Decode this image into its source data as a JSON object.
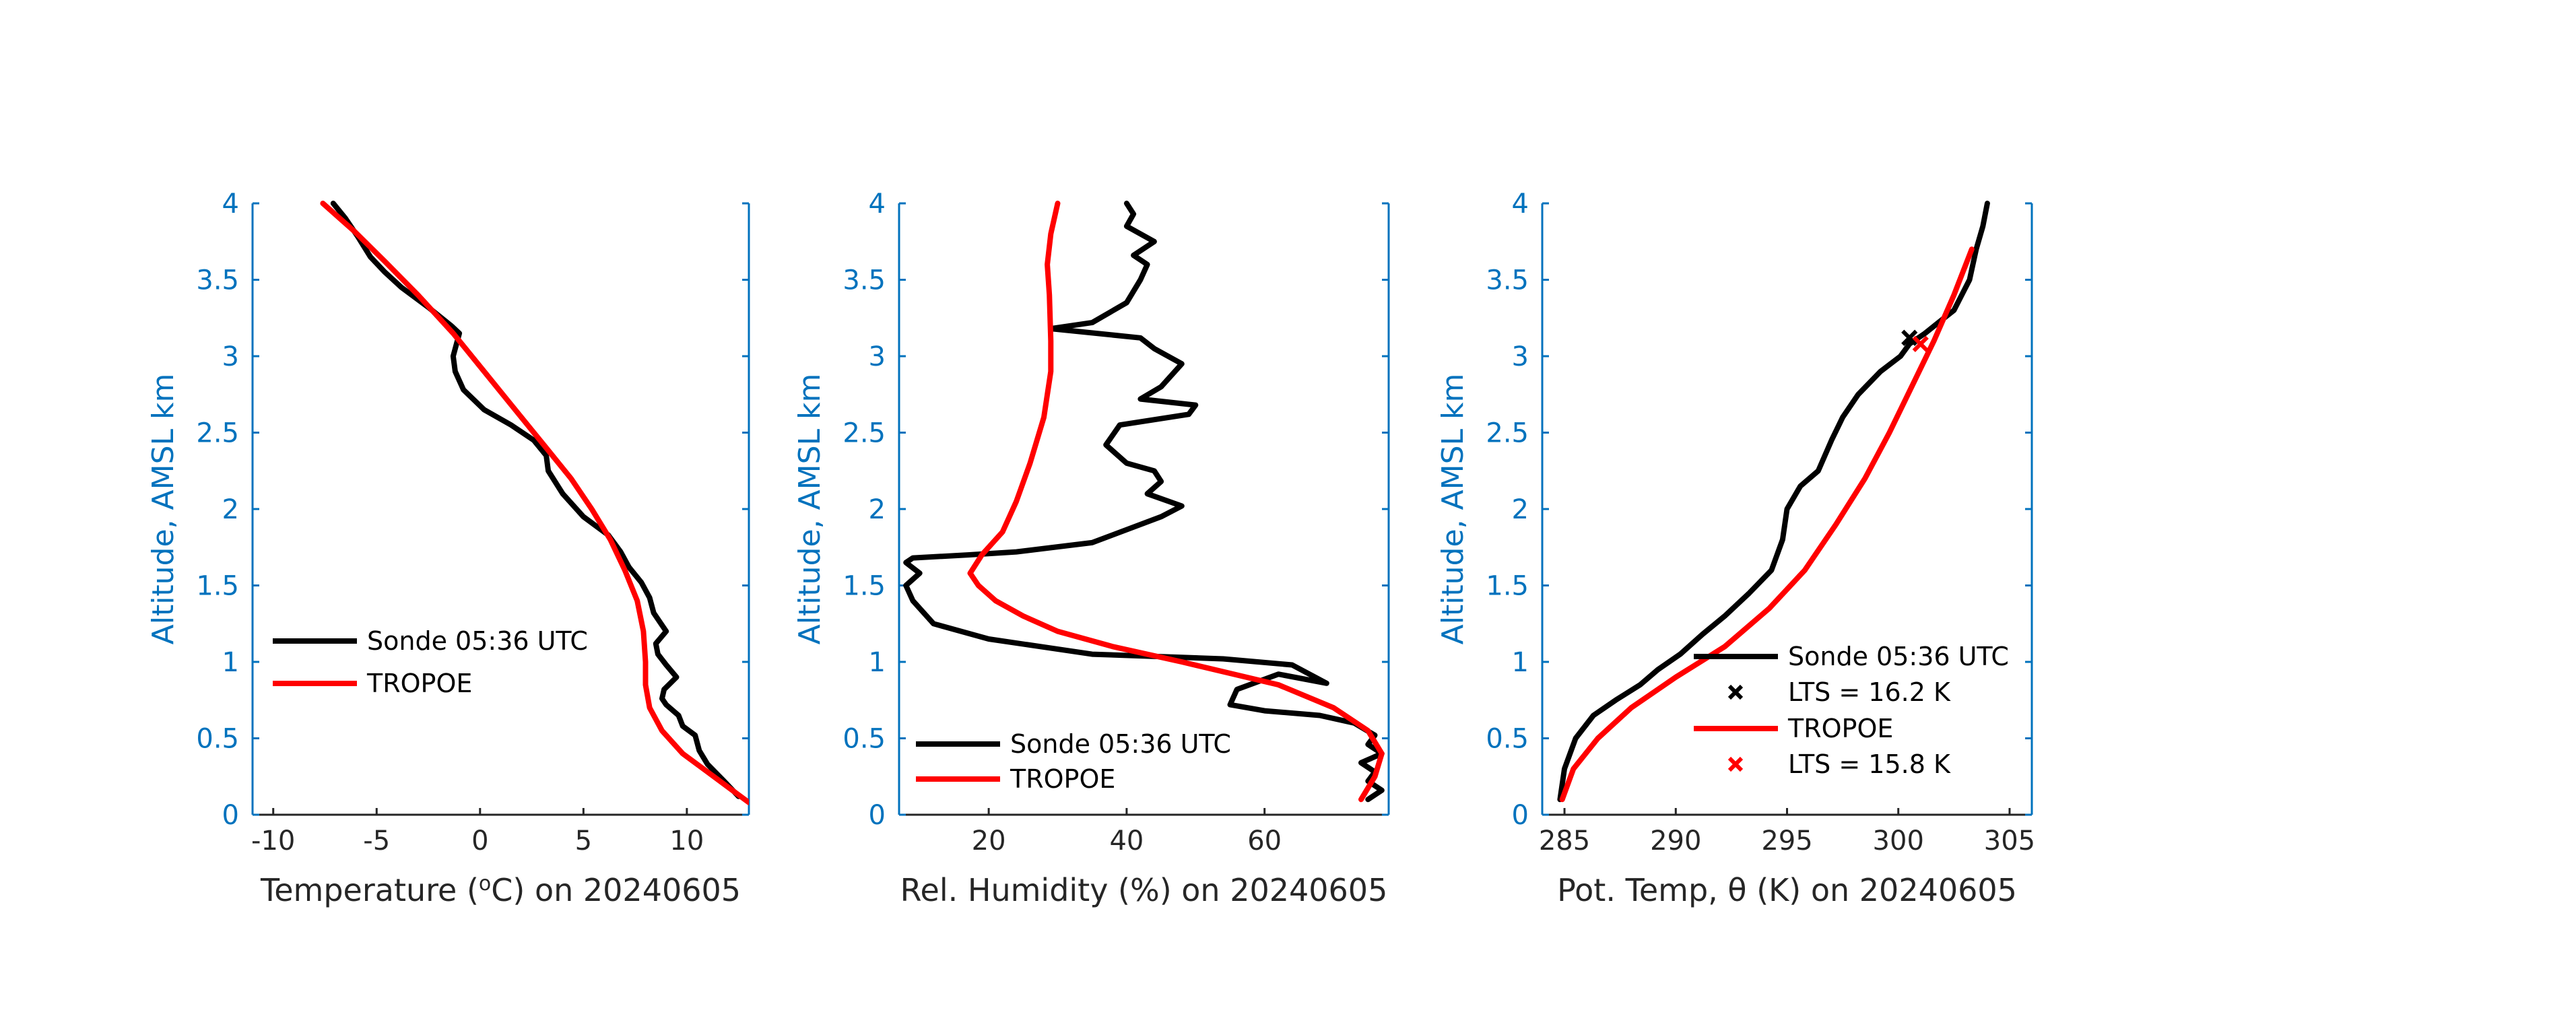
{
  "chart_data": [
    {
      "type": "line",
      "date": "20240605",
      "xlabel": "Temperature (",
      "xlabel_unit": "o",
      "xlabel_suffix": "C) on 20240605",
      "ylabel": "Altitude, AMSL km",
      "xlim": [
        -11,
        13
      ],
      "ylim": [
        0,
        4
      ],
      "xticks": [
        -10,
        -5,
        0,
        5,
        10
      ],
      "xtick_labels": [
        "-10",
        "-5",
        "0",
        "5",
        "10"
      ],
      "yticks": [
        0,
        0.5,
        1,
        1.5,
        2,
        2.5,
        3,
        3.5,
        4
      ],
      "ytick_labels": [
        "0",
        "0.5",
        "1",
        "1.5",
        "2",
        "2.5",
        "3",
        "3.5",
        "4"
      ],
      "legend_position": "lower-left",
      "series": [
        {
          "name": "Sonde 05:36 UTC",
          "color": "#000000",
          "x": [
            12.5,
            11.8,
            11.0,
            10.6,
            10.4,
            9.8,
            9.6,
            9.0,
            8.8,
            8.9,
            9.5,
            9.0,
            8.6,
            8.5,
            9.0,
            8.4,
            8.2,
            7.8,
            7.2,
            6.8,
            6.2,
            5.0,
            4.0,
            3.3,
            3.2,
            2.6,
            1.5,
            0.2,
            -0.8,
            -1.2,
            -1.3,
            -1.0,
            -1.4,
            -2.5,
            -3.8,
            -4.6,
            -5.3,
            -5.9,
            -6.5,
            -7.1
          ],
          "y": [
            0.12,
            0.22,
            0.33,
            0.42,
            0.52,
            0.58,
            0.65,
            0.72,
            0.76,
            0.82,
            0.9,
            0.98,
            1.05,
            1.12,
            1.2,
            1.32,
            1.42,
            1.52,
            1.62,
            1.72,
            1.83,
            1.95,
            2.1,
            2.25,
            2.35,
            2.45,
            2.55,
            2.65,
            2.78,
            2.9,
            3.0,
            3.15,
            3.2,
            3.32,
            3.45,
            3.55,
            3.65,
            3.78,
            3.9,
            4.0
          ]
        },
        {
          "name": "TROPOE",
          "color": "#FF0000",
          "x": [
            13.0,
            12.3,
            11.0,
            9.8,
            8.8,
            8.2,
            8.0,
            8.0,
            7.9,
            7.6,
            7.0,
            6.3,
            5.4,
            4.4,
            3.2,
            1.7,
            0.2,
            -1.3,
            -3.0,
            -4.6,
            -6.1,
            -7.6
          ],
          "y": [
            0.08,
            0.15,
            0.28,
            0.4,
            0.55,
            0.7,
            0.85,
            1.0,
            1.2,
            1.4,
            1.6,
            1.8,
            2.0,
            2.2,
            2.4,
            2.65,
            2.9,
            3.15,
            3.4,
            3.62,
            3.82,
            4.0
          ]
        }
      ]
    },
    {
      "type": "line",
      "xlabel": "Rel. Humidity (%) on 20240605",
      "ylabel": "Altitude, AMSL km",
      "xlim": [
        7,
        78
      ],
      "ylim": [
        0,
        4
      ],
      "xticks": [
        20,
        40,
        60
      ],
      "xtick_labels": [
        "20",
        "40",
        "60"
      ],
      "yticks": [
        0,
        0.5,
        1,
        1.5,
        2,
        2.5,
        3,
        3.5,
        4
      ],
      "ytick_labels": [
        "0",
        "0.5",
        "1",
        "1.5",
        "2",
        "2.5",
        "3",
        "3.5",
        "4"
      ],
      "legend_position": "lower-left",
      "series": [
        {
          "name": "Sonde 05:36 UTC",
          "color": "#000000",
          "x": [
            75,
            77,
            75,
            76,
            74,
            77,
            75,
            76,
            73,
            68,
            60,
            55,
            56,
            62,
            69,
            64,
            54,
            35,
            20,
            12,
            9,
            8,
            10,
            8,
            9,
            17,
            24,
            35,
            45,
            48,
            43,
            45,
            44,
            40,
            37,
            39,
            49,
            50,
            42,
            45,
            48,
            44,
            42,
            29,
            35,
            40,
            42,
            43,
            41,
            44,
            40,
            41,
            40
          ],
          "y": [
            0.1,
            0.16,
            0.22,
            0.28,
            0.34,
            0.4,
            0.46,
            0.52,
            0.6,
            0.65,
            0.68,
            0.72,
            0.82,
            0.92,
            0.86,
            0.98,
            1.02,
            1.05,
            1.15,
            1.25,
            1.4,
            1.5,
            1.58,
            1.65,
            1.68,
            1.7,
            1.72,
            1.78,
            1.95,
            2.02,
            2.1,
            2.18,
            2.25,
            2.3,
            2.42,
            2.55,
            2.62,
            2.68,
            2.72,
            2.8,
            2.95,
            3.05,
            3.12,
            3.18,
            3.22,
            3.35,
            3.5,
            3.6,
            3.66,
            3.75,
            3.85,
            3.93,
            4.0
          ]
        },
        {
          "name": "TROPOE",
          "color": "#FF0000",
          "x": [
            74,
            76,
            77,
            75,
            70,
            62,
            48,
            38,
            30,
            25,
            21,
            18.5,
            17.3,
            19,
            22,
            24,
            26,
            28,
            29,
            29,
            28.8,
            28.5,
            29,
            30
          ],
          "y": [
            0.1,
            0.25,
            0.4,
            0.55,
            0.7,
            0.85,
            1.0,
            1.1,
            1.2,
            1.3,
            1.4,
            1.5,
            1.58,
            1.7,
            1.85,
            2.05,
            2.3,
            2.6,
            2.9,
            3.1,
            3.4,
            3.6,
            3.8,
            4.0
          ]
        }
      ]
    },
    {
      "type": "line",
      "xlabel": "Pot. Temp, θ (K) on 20240605",
      "ylabel": "Altitude, AMSL km",
      "xlim": [
        284,
        306
      ],
      "ylim": [
        0,
        4
      ],
      "xticks": [
        285,
        290,
        295,
        300,
        305
      ],
      "xtick_labels": [
        "285",
        "290",
        "295",
        "300",
        "305"
      ],
      "yticks": [
        0,
        0.5,
        1,
        1.5,
        2,
        2.5,
        3,
        3.5,
        4
      ],
      "ytick_labels": [
        "0",
        "0.5",
        "1",
        "1.5",
        "2",
        "2.5",
        "3",
        "3.5",
        "4"
      ],
      "legend_position": "lower-left",
      "series": [
        {
          "name": "Sonde 05:36 UTC",
          "color": "#000000",
          "x": [
            284.8,
            285.0,
            285.5,
            286.3,
            287.3,
            288.4,
            289.2,
            290.2,
            291.2,
            292.2,
            293.3,
            294.3,
            294.8,
            295.0,
            295.6,
            296.4,
            297.0,
            297.5,
            298.2,
            299.2,
            300.1,
            300.5,
            301.2,
            301.8,
            302.5,
            303.2,
            303.5,
            303.8,
            304.0
          ],
          "y": [
            0.1,
            0.3,
            0.5,
            0.65,
            0.75,
            0.85,
            0.95,
            1.05,
            1.18,
            1.3,
            1.45,
            1.6,
            1.8,
            2.0,
            2.15,
            2.25,
            2.45,
            2.6,
            2.75,
            2.9,
            3.0,
            3.08,
            3.15,
            3.22,
            3.3,
            3.5,
            3.7,
            3.85,
            4.0
          ]
        },
        {
          "name": "TROPOE",
          "color": "#FF0000",
          "x": [
            284.9,
            285.4,
            286.5,
            288.0,
            290.0,
            292.2,
            294.2,
            295.8,
            297.2,
            298.5,
            299.6,
            300.6,
            301.6,
            302.5,
            303.3
          ],
          "y": [
            0.1,
            0.3,
            0.5,
            0.7,
            0.9,
            1.1,
            1.35,
            1.6,
            1.9,
            2.2,
            2.5,
            2.8,
            3.1,
            3.4,
            3.7
          ]
        }
      ],
      "markers": [
        {
          "series": "Sonde 05:36 UTC",
          "label": "LTS = 16.2 K",
          "x": 300.5,
          "y": 3.12,
          "color": "#000000"
        },
        {
          "series": "TROPOE",
          "label": "LTS = 15.8 K",
          "x": 301.0,
          "y": 3.08,
          "color": "#FF0000"
        }
      ]
    }
  ]
}
